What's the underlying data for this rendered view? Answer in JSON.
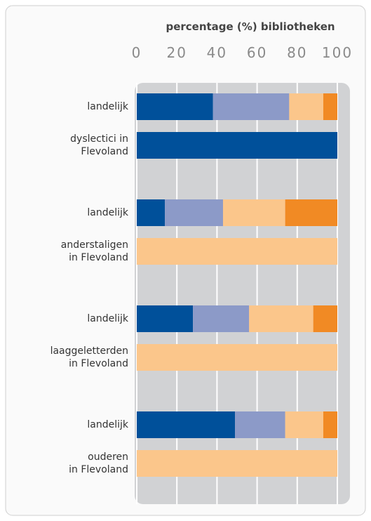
{
  "chart_data": {
    "type": "bar",
    "orientation": "horizontal",
    "stacked": true,
    "xlabel": "percentage (%) bibliotheken",
    "categories": [
      "landelijk",
      "dyslectici in\nFlevoland",
      "landelijk",
      "anderstaligen\nin Flevoland",
      "landelijk",
      "laaggeletterden\nin Flevoland",
      "landelijk",
      "ouderen\nin Flevoland"
    ],
    "series": [
      {
        "color": "#00509a",
        "values": [
          38,
          100,
          14,
          0,
          28,
          0,
          49,
          0
        ]
      },
      {
        "color": "#8c9ac8",
        "values": [
          38,
          0,
          29,
          0,
          28,
          0,
          25,
          0
        ]
      },
      {
        "color": "#fbc68b",
        "values": [
          17,
          0,
          31,
          100,
          32,
          100,
          19,
          100
        ]
      },
      {
        "color": "#f18a24",
        "values": [
          7,
          0,
          26,
          0,
          12,
          0,
          7,
          0
        ]
      }
    ],
    "xlim": [
      0,
      100
    ],
    "xticks": [
      0,
      20,
      40,
      60,
      80,
      100
    ],
    "grid": true
  }
}
